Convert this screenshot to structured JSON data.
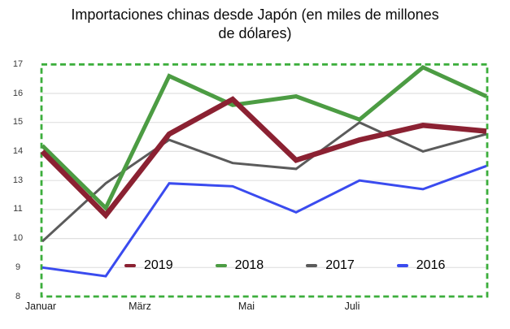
{
  "title": "Importaciones chinas desde Japón (en miles de millones de dólares)",
  "title_lines": [
    "Importaciones chinas desde Japón (en miles de millones",
    "de dólares)"
  ],
  "chart_data": {
    "type": "line",
    "title": "Importaciones chinas desde Japón (en miles de millones de dólares)",
    "n_points": 8,
    "x_visible_tick_labels": [
      "Januar",
      "März",
      "Mai",
      "Juli"
    ],
    "y_axis": {
      "tick_labels": [
        "8",
        "9",
        "10",
        "11",
        "13",
        "14",
        "15",
        "16",
        "17"
      ],
      "range": [
        8,
        17
      ],
      "note": "tick labels as rendered; value 12 is skipped between 11 and 13"
    },
    "grid": true,
    "grid_color": "#E0E0E0",
    "selection_border_color": "#3CAE3C",
    "legend_position": "bottom-inside",
    "series": [
      {
        "name": "2019",
        "color": "#8B2132",
        "stroke_width": 6.5,
        "values": [
          14.0,
          10.8,
          14.6,
          15.8,
          13.7,
          14.4,
          14.9,
          14.7
        ]
      },
      {
        "name": "2018",
        "color": "#4C9C43",
        "stroke_width": 5,
        "values": [
          14.2,
          11.1,
          16.6,
          15.6,
          15.9,
          15.1,
          16.9,
          15.9
        ]
      },
      {
        "name": "2017",
        "color": "#5B5B5B",
        "stroke_width": 3,
        "values": [
          9.9,
          12.8,
          14.4,
          13.6,
          13.4,
          15.0,
          14.0,
          14.6
        ]
      },
      {
        "name": "2016",
        "color": "#3A4BEF",
        "stroke_width": 3,
        "values": [
          9.0,
          8.7,
          12.8,
          12.6,
          10.9,
          13.0,
          12.4,
          13.5
        ]
      }
    ]
  }
}
